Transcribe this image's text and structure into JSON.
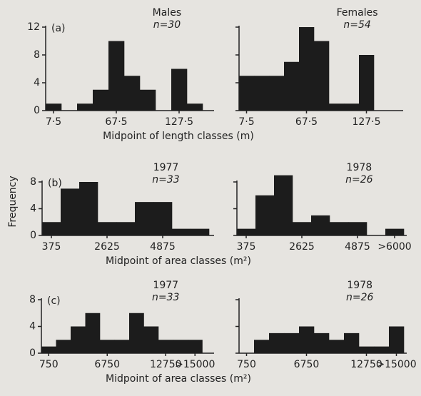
{
  "chart_data": [
    {
      "type": "bar",
      "panel_label": "(a)",
      "title": "Males",
      "subtitle": "n=30",
      "categories": [
        "7·5",
        null,
        null,
        null,
        "67·5",
        null,
        null,
        null,
        "127·5",
        null
      ],
      "values": [
        1,
        0,
        1,
        3,
        10,
        5,
        3,
        0,
        6,
        1
      ],
      "color": "#1c1c1c",
      "ylim": [
        0,
        12
      ],
      "yticks": [
        0,
        4,
        8,
        12
      ],
      "xlabel": "Midpoint of length classes (m)"
    },
    {
      "type": "bar",
      "title": "Females",
      "subtitle": "n=54",
      "categories": [
        "7·5",
        null,
        null,
        null,
        "67·5",
        null,
        null,
        null,
        "127·5"
      ],
      "values": [
        5,
        5,
        5,
        7,
        12,
        10,
        1,
        1,
        8
      ],
      "color": "#1c1c1c",
      "ylim": [
        0,
        12
      ],
      "yticks": [
        0,
        4,
        8,
        12
      ],
      "ytick_labels": false
    },
    {
      "type": "bar",
      "panel_label": "(b)",
      "title": "1977",
      "subtitle": "n=33",
      "categories": [
        "375",
        null,
        null,
        "2625",
        null,
        null,
        "4875",
        null,
        null
      ],
      "values": [
        2,
        7,
        8,
        2,
        2,
        5,
        5,
        1,
        1
      ],
      "color": "#1c1c1c",
      "ylim": [
        0,
        8
      ],
      "yticks": [
        0,
        4,
        8
      ],
      "xlabel": "Midpoint of area classes (m²)",
      "ylabel": "Frequency"
    },
    {
      "type": "bar",
      "title": "1978",
      "subtitle": "n=26",
      "categories": [
        "375",
        null,
        null,
        "2625",
        null,
        null,
        "4875",
        null,
        ">6000"
      ],
      "values": [
        1,
        6,
        9,
        2,
        3,
        2,
        2,
        0,
        1
      ],
      "color": "#1c1c1c",
      "ylim": [
        0,
        8
      ],
      "yticks": [
        0,
        4,
        8
      ],
      "ytick_labels": false
    },
    {
      "type": "bar",
      "panel_label": "(c)",
      "title": "1977",
      "subtitle": "n=33",
      "categories": [
        "750",
        null,
        null,
        null,
        "6750",
        null,
        null,
        null,
        "12750",
        null,
        ">15000"
      ],
      "values": [
        1,
        2,
        4,
        6,
        2,
        2,
        6,
        4,
        2,
        2,
        2
      ],
      "color": "#1c1c1c",
      "ylim": [
        0,
        8
      ],
      "yticks": [
        0,
        4,
        8
      ],
      "xlabel": "Midpoint of area classes (m²)"
    },
    {
      "type": "bar",
      "title": "1978",
      "subtitle": "n=26",
      "categories": [
        "750",
        null,
        null,
        null,
        "6750",
        null,
        null,
        null,
        "12750",
        null,
        ">15000"
      ],
      "values": [
        0,
        2,
        3,
        3,
        4,
        3,
        2,
        3,
        1,
        1,
        4
      ],
      "color": "#1c1c1c",
      "ylim": [
        0,
        8
      ],
      "yticks": [
        0,
        4,
        8
      ],
      "ytick_labels": false
    }
  ]
}
